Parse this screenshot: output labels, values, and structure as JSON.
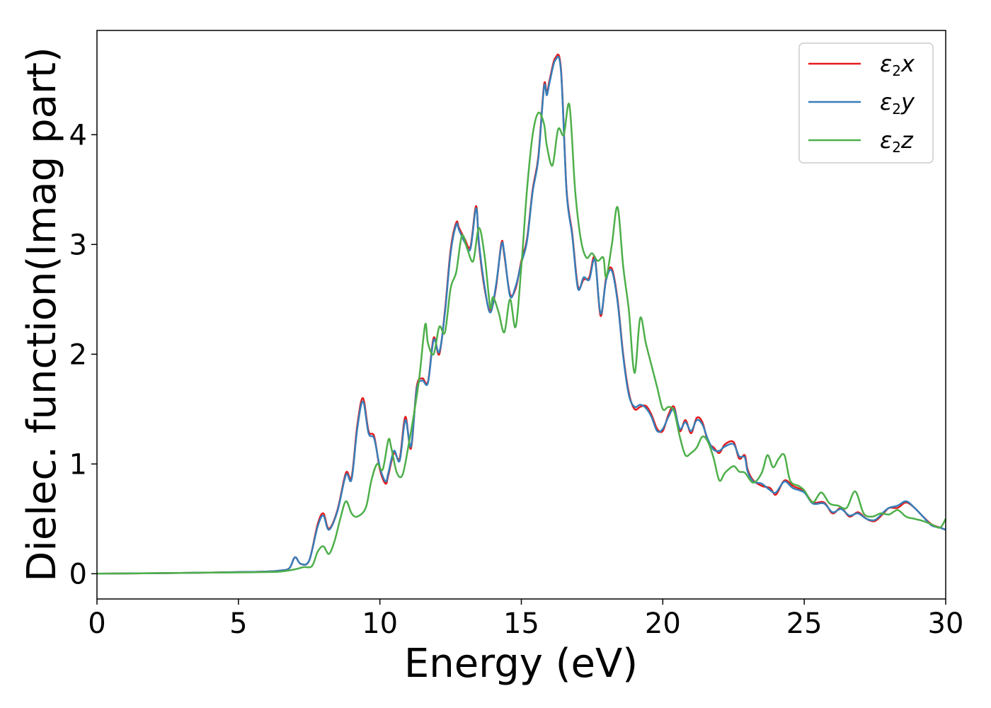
{
  "chart_data": {
    "type": "line",
    "xlabel": "Energy (eV)",
    "ylabel": "Dielec. function(Imag part)",
    "xlim": [
      0,
      30
    ],
    "ylim": [
      -0.23,
      4.95
    ],
    "xticks": [
      0,
      5,
      10,
      15,
      20,
      25,
      30
    ],
    "yticks": [
      0,
      1,
      2,
      3,
      4
    ],
    "legend_position": "top-right",
    "grid": false,
    "series": [
      {
        "name": "ε2x",
        "legend_symbol": "ε",
        "legend_sub": "2",
        "legend_suffix": "x",
        "color": "#e41a1c",
        "x": [
          0,
          2,
          4,
          5,
          6,
          6.5,
          6.8,
          7.0,
          7.2,
          7.5,
          7.8,
          8.0,
          8.2,
          8.5,
          8.8,
          9.0,
          9.2,
          9.4,
          9.6,
          9.8,
          10.0,
          10.2,
          10.3,
          10.5,
          10.7,
          10.9,
          11.1,
          11.3,
          11.5,
          11.7,
          11.9,
          12.1,
          12.3,
          12.5,
          12.7,
          12.8,
          13.0,
          13.2,
          13.4,
          13.5,
          13.7,
          13.9,
          14.1,
          14.3,
          14.4,
          14.6,
          14.8,
          15.0,
          15.2,
          15.4,
          15.6,
          15.8,
          15.9,
          16.0,
          16.2,
          16.4,
          16.6,
          16.8,
          17.0,
          17.2,
          17.4,
          17.6,
          17.8,
          18.0,
          18.2,
          18.4,
          18.6,
          18.8,
          19.0,
          19.2,
          19.4,
          19.6,
          19.8,
          20.0,
          20.2,
          20.4,
          20.6,
          20.8,
          21.0,
          21.2,
          21.4,
          21.6,
          21.8,
          22.0,
          22.2,
          22.5,
          22.7,
          22.9,
          23.0,
          23.2,
          23.5,
          23.8,
          24.0,
          24.3,
          24.6,
          25.0,
          25.3,
          25.7,
          26.0,
          26.3,
          26.6,
          26.9,
          27.2,
          27.5,
          27.8,
          28.0,
          28.3,
          28.6,
          28.9,
          29.2,
          29.5,
          29.8,
          30.0
        ],
        "y": [
          0,
          0.005,
          0.01,
          0.015,
          0.02,
          0.03,
          0.05,
          0.15,
          0.09,
          0.12,
          0.45,
          0.55,
          0.41,
          0.58,
          0.92,
          0.88,
          1.35,
          1.6,
          1.3,
          1.25,
          0.95,
          0.82,
          0.9,
          1.1,
          1.05,
          1.43,
          1.14,
          1.7,
          1.78,
          1.75,
          2.15,
          2.0,
          2.4,
          2.95,
          3.2,
          3.15,
          3.05,
          2.98,
          3.35,
          3.0,
          2.6,
          2.4,
          2.6,
          3.02,
          2.9,
          2.55,
          2.6,
          2.85,
          3.05,
          3.5,
          3.8,
          4.45,
          4.38,
          4.5,
          4.7,
          4.6,
          3.5,
          3.1,
          2.62,
          2.68,
          2.7,
          2.88,
          2.35,
          2.7,
          2.78,
          2.5,
          2.0,
          1.65,
          1.5,
          1.52,
          1.53,
          1.45,
          1.32,
          1.3,
          1.45,
          1.52,
          1.3,
          1.4,
          1.28,
          1.42,
          1.38,
          1.2,
          1.15,
          1.1,
          1.18,
          1.2,
          1.05,
          1.08,
          0.95,
          0.85,
          0.8,
          0.78,
          0.72,
          0.85,
          0.8,
          0.75,
          0.65,
          0.65,
          0.55,
          0.6,
          0.52,
          0.56,
          0.5,
          0.48,
          0.55,
          0.6,
          0.6,
          0.65,
          0.6,
          0.52,
          0.45,
          0.42,
          0.4
        ]
      },
      {
        "name": "ε2y",
        "legend_symbol": "ε",
        "legend_sub": "2",
        "legend_suffix": "y",
        "color": "#377eb8",
        "x": [
          0,
          2,
          4,
          5,
          6,
          6.5,
          6.8,
          7.0,
          7.2,
          7.5,
          7.8,
          8.0,
          8.2,
          8.5,
          8.8,
          9.0,
          9.2,
          9.4,
          9.6,
          9.8,
          10.0,
          10.2,
          10.3,
          10.5,
          10.7,
          10.9,
          11.1,
          11.3,
          11.5,
          11.7,
          11.9,
          12.1,
          12.3,
          12.5,
          12.7,
          12.8,
          13.0,
          13.2,
          13.4,
          13.5,
          13.7,
          13.9,
          14.1,
          14.3,
          14.4,
          14.6,
          14.8,
          15.0,
          15.2,
          15.4,
          15.6,
          15.8,
          15.9,
          16.0,
          16.2,
          16.4,
          16.6,
          16.8,
          17.0,
          17.2,
          17.4,
          17.6,
          17.8,
          18.0,
          18.2,
          18.4,
          18.6,
          18.8,
          19.0,
          19.2,
          19.4,
          19.6,
          19.8,
          20.0,
          20.2,
          20.4,
          20.6,
          20.8,
          21.0,
          21.2,
          21.4,
          21.6,
          21.8,
          22.0,
          22.2,
          22.5,
          22.7,
          22.9,
          23.0,
          23.2,
          23.5,
          23.8,
          24.0,
          24.3,
          24.6,
          25.0,
          25.3,
          25.7,
          26.0,
          26.3,
          26.6,
          26.9,
          27.2,
          27.5,
          27.8,
          28.0,
          28.3,
          28.6,
          28.9,
          29.2,
          29.5,
          29.8,
          30.0
        ],
        "y": [
          0,
          0.005,
          0.01,
          0.015,
          0.02,
          0.03,
          0.05,
          0.15,
          0.09,
          0.12,
          0.43,
          0.53,
          0.4,
          0.57,
          0.9,
          0.86,
          1.32,
          1.57,
          1.28,
          1.23,
          0.97,
          0.84,
          0.92,
          1.12,
          1.03,
          1.4,
          1.16,
          1.68,
          1.76,
          1.74,
          2.13,
          2.02,
          2.38,
          2.92,
          3.18,
          3.13,
          3.02,
          2.96,
          3.33,
          3.02,
          2.62,
          2.38,
          2.62,
          3.0,
          2.92,
          2.53,
          2.62,
          2.83,
          3.03,
          3.48,
          3.78,
          4.43,
          4.36,
          4.48,
          4.68,
          4.58,
          3.48,
          3.08,
          2.6,
          2.7,
          2.68,
          2.86,
          2.37,
          2.68,
          2.76,
          2.48,
          1.98,
          1.63,
          1.52,
          1.54,
          1.51,
          1.43,
          1.3,
          1.32,
          1.43,
          1.5,
          1.32,
          1.38,
          1.3,
          1.4,
          1.36,
          1.22,
          1.13,
          1.12,
          1.16,
          1.18,
          1.07,
          1.06,
          0.93,
          0.84,
          0.82,
          0.76,
          0.74,
          0.84,
          0.78,
          0.74,
          0.64,
          0.64,
          0.56,
          0.59,
          0.53,
          0.55,
          0.5,
          0.49,
          0.56,
          0.6,
          0.62,
          0.66,
          0.6,
          0.52,
          0.44,
          0.42,
          0.4
        ]
      },
      {
        "name": "ε2z",
        "legend_symbol": "ε",
        "legend_sub": "2",
        "legend_suffix": "z",
        "color": "#4daf4a",
        "x": [
          0,
          2,
          4,
          5,
          6,
          6.5,
          7.0,
          7.3,
          7.6,
          7.8,
          8.0,
          8.2,
          8.4,
          8.6,
          8.8,
          9.0,
          9.2,
          9.5,
          9.7,
          9.9,
          10.1,
          10.3,
          10.4,
          10.6,
          10.8,
          11.0,
          11.2,
          11.4,
          11.6,
          11.7,
          11.9,
          12.1,
          12.3,
          12.5,
          12.7,
          12.9,
          13.1,
          13.3,
          13.5,
          13.7,
          13.9,
          14.0,
          14.2,
          14.4,
          14.6,
          14.8,
          15.0,
          15.2,
          15.4,
          15.6,
          15.8,
          15.9,
          16.1,
          16.3,
          16.5,
          16.7,
          16.9,
          17.1,
          17.3,
          17.5,
          17.7,
          17.9,
          18.0,
          18.2,
          18.4,
          18.6,
          18.8,
          19.0,
          19.2,
          19.4,
          19.6,
          19.8,
          20.0,
          20.2,
          20.4,
          20.6,
          20.8,
          21.0,
          21.2,
          21.4,
          21.6,
          21.8,
          22.0,
          22.2,
          22.5,
          22.7,
          22.9,
          23.2,
          23.5,
          23.7,
          23.9,
          24.1,
          24.3,
          24.5,
          24.8,
          25.0,
          25.3,
          25.6,
          25.9,
          26.2,
          26.5,
          26.8,
          27.1,
          27.4,
          27.7,
          28.0,
          28.3,
          28.6,
          28.9,
          29.2,
          29.5,
          29.8,
          30.0
        ],
        "y": [
          0,
          0.005,
          0.01,
          0.012,
          0.015,
          0.02,
          0.04,
          0.06,
          0.07,
          0.2,
          0.25,
          0.18,
          0.3,
          0.5,
          0.66,
          0.55,
          0.52,
          0.6,
          0.85,
          1.0,
          0.95,
          1.22,
          1.15,
          0.92,
          0.9,
          1.15,
          1.45,
          1.8,
          2.27,
          2.1,
          2.0,
          2.25,
          2.2,
          2.6,
          2.75,
          3.08,
          2.95,
          2.85,
          3.15,
          2.9,
          2.43,
          2.52,
          2.38,
          2.2,
          2.5,
          2.25,
          2.8,
          3.5,
          4.0,
          4.2,
          4.1,
          3.9,
          3.72,
          4.05,
          4.0,
          4.27,
          3.5,
          3.05,
          2.88,
          2.92,
          2.85,
          2.88,
          2.7,
          3.0,
          3.34,
          2.8,
          2.4,
          1.83,
          2.33,
          2.1,
          1.9,
          1.7,
          1.5,
          1.52,
          1.48,
          1.25,
          1.08,
          1.1,
          1.15,
          1.25,
          1.2,
          1.05,
          0.85,
          0.92,
          0.98,
          0.93,
          0.92,
          0.83,
          0.92,
          1.08,
          0.97,
          1.05,
          1.08,
          0.85,
          0.8,
          0.76,
          0.65,
          0.74,
          0.64,
          0.62,
          0.6,
          0.75,
          0.55,
          0.52,
          0.55,
          0.54,
          0.58,
          0.52,
          0.5,
          0.48,
          0.45,
          0.42,
          0.5
        ]
      }
    ]
  }
}
